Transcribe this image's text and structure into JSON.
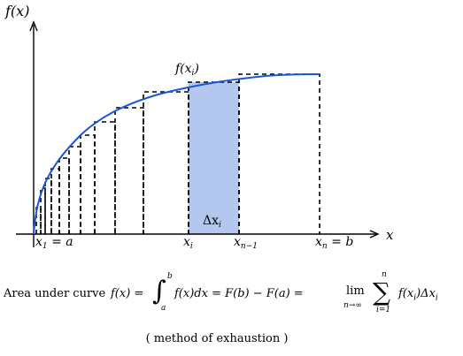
{
  "diagram": {
    "y_axis_label": "f(x)",
    "x_axis_label": "x",
    "curve_point_label": "f(x",
    "curve_point_sub": "i",
    "curve_point_close": ")",
    "delta_label": "Δx",
    "delta_sub": "i",
    "tick_x1": "x",
    "tick_x1_sub": "1",
    "tick_x1_rest": " = a",
    "tick_xi": "x",
    "tick_xi_sub": "i",
    "tick_xn1": "x",
    "tick_xn1_sub": "n−1",
    "tick_xn": "x",
    "tick_xn_sub": "n",
    "tick_xn_rest": " = b",
    "colors": {
      "curve": "#1a56d6",
      "highlight": "#b4c8ef",
      "axes": "#000000"
    }
  },
  "formula": {
    "lead": "Area under curve ",
    "lhs": "f(x) =",
    "int_sym": "∫",
    "int_upper": "b",
    "int_lower": "a",
    "integrand": "f(x)dx = F(b) − F(a) = ",
    "lim": "lim",
    "lim_under": "n→∞",
    "sum_sym": "∑",
    "sum_upper": "n",
    "sum_lower": "i=1",
    "summand": "f(x",
    "summand_sub": "i",
    "summand_rest": ")Δx",
    "summand_sub2": "i"
  },
  "caption": "( method of exhaustion )"
}
